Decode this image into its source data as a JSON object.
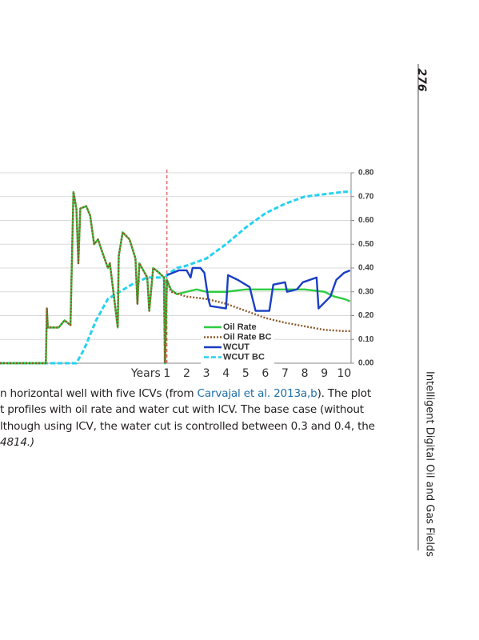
{
  "page_number": "276",
  "running_header": "Intelligent Digital Oil and Gas Fields",
  "caption": {
    "line1": [
      "n horizontal well with five ICVs (from ",
      "Carvajal et al. 2013a,b",
      "). The plot"
    ],
    "line2": "t profiles with oil rate and water cut with ICV. The base case (without",
    "line3": "lthough using ICV, the water cut is controlled between 0.3 and 0.4, the",
    "line4": "4814.)"
  },
  "chart_data": {
    "type": "line",
    "xlabel": "Years",
    "xlim": [
      -7.48,
      10.35
    ],
    "xticks": [
      1,
      2,
      3,
      4,
      5,
      6,
      7,
      8,
      9,
      10
    ],
    "ylim": [
      0,
      0.8
    ],
    "yticks": [
      {
        "value": 0,
        "label": "0.00"
      },
      {
        "value": 0.1,
        "label": "0.10"
      },
      {
        "value": 0.2,
        "label": "0.20"
      },
      {
        "value": 0.3,
        "label": "0.30"
      },
      {
        "value": 0.4,
        "label": "0.40"
      },
      {
        "value": 0.5,
        "label": "0.50"
      },
      {
        "value": 0.6,
        "label": "0.60"
      },
      {
        "value": 0.7,
        "label": "0.70"
      },
      {
        "value": 0.8,
        "label": "0.80"
      }
    ],
    "grid": true,
    "legend": "lower-right",
    "series": [
      {
        "name": "WCUT BC",
        "color": "#22d3f0",
        "style": "dashed",
        "x": [
          -7.48,
          -3.6,
          -3.2,
          -2.6,
          -2.0,
          -1.4,
          -0.8,
          0.0,
          0.85,
          0.9,
          0.92,
          1.0,
          1.5,
          2,
          3,
          4,
          5,
          6,
          7,
          8,
          9,
          10,
          10.35
        ],
        "values": [
          0,
          0,
          0.06,
          0.18,
          0.27,
          0.3,
          0.33,
          0.36,
          0.36,
          0,
          0.36,
          0.37,
          0.4,
          0.41,
          0.44,
          0.5,
          0.57,
          0.63,
          0.67,
          0.7,
          0.71,
          0.72,
          0.72
        ]
      },
      {
        "name": "Oil Rate",
        "color": "#2ecc40",
        "style": "solid",
        "x": [
          -7.48,
          -5.15,
          -5.1,
          -5.05,
          -4.5,
          -4.2,
          -3.9,
          -3.75,
          -3.6,
          -3.5,
          -3.4,
          -3.1,
          -2.9,
          -2.7,
          -2.5,
          -2.3,
          -2.0,
          -1.9,
          -1.5,
          -1.45,
          -1.25,
          -0.9,
          -0.6,
          -0.5,
          -0.4,
          0.0,
          0.1,
          0.3,
          0.6,
          0.85,
          0.9,
          1.0,
          1.2,
          1.5,
          2,
          2.5,
          3,
          4,
          5,
          6,
          7,
          8,
          9,
          9.5,
          10,
          10.3
        ],
        "values": [
          0,
          0,
          0.23,
          0.15,
          0.15,
          0.18,
          0.16,
          0.72,
          0.65,
          0.42,
          0.65,
          0.66,
          0.62,
          0.5,
          0.52,
          0.47,
          0.4,
          0.42,
          0.15,
          0.45,
          0.55,
          0.52,
          0.44,
          0.25,
          0.42,
          0.36,
          0.22,
          0.4,
          0.38,
          0.36,
          0,
          0.35,
          0.31,
          0.29,
          0.3,
          0.31,
          0.3,
          0.3,
          0.31,
          0.31,
          0.31,
          0.31,
          0.3,
          0.28,
          0.27,
          0.26
        ]
      },
      {
        "name": "Oil Rate BC",
        "color": "#8b5a2b",
        "style": "dotted",
        "x": [
          -7.48,
          -5.15,
          -5.1,
          -5.05,
          -4.5,
          -4.2,
          -3.9,
          -3.75,
          -3.6,
          -3.5,
          -3.4,
          -3.1,
          -2.9,
          -2.7,
          -2.5,
          -2.3,
          -2.0,
          -1.9,
          -1.5,
          -1.45,
          -1.25,
          -0.9,
          -0.6,
          -0.5,
          -0.4,
          0.0,
          0.1,
          0.3,
          0.6,
          0.85,
          0.9,
          1.0,
          1.2,
          2,
          3,
          4,
          5,
          6,
          7,
          8,
          9,
          10,
          10.3
        ],
        "values": [
          0,
          0,
          0.23,
          0.15,
          0.15,
          0.18,
          0.16,
          0.72,
          0.65,
          0.42,
          0.65,
          0.66,
          0.62,
          0.5,
          0.52,
          0.47,
          0.4,
          0.42,
          0.15,
          0.45,
          0.55,
          0.52,
          0.44,
          0.25,
          0.42,
          0.36,
          0.22,
          0.4,
          0.38,
          0.36,
          0,
          0.35,
          0.3,
          0.28,
          0.27,
          0.25,
          0.22,
          0.19,
          0.17,
          0.155,
          0.14,
          0.135,
          0.135
        ]
      },
      {
        "name": "WCUT",
        "color": "#1a3fc4",
        "style": "solid",
        "x": [
          1.0,
          1.3,
          1.6,
          2,
          2.2,
          2.3,
          2.7,
          2.9,
          3.1,
          3.2,
          4,
          4.1,
          4.6,
          5.2,
          5.5,
          6.2,
          6.4,
          7,
          7.1,
          7.6,
          7.9,
          8.6,
          8.7,
          9.3,
          9.6,
          10,
          10.3
        ],
        "values": [
          0.37,
          0.38,
          0.39,
          0.39,
          0.36,
          0.4,
          0.4,
          0.38,
          0.27,
          0.24,
          0.23,
          0.37,
          0.35,
          0.32,
          0.22,
          0.22,
          0.33,
          0.34,
          0.3,
          0.31,
          0.34,
          0.36,
          0.23,
          0.28,
          0.35,
          0.38,
          0.39
        ]
      }
    ]
  }
}
